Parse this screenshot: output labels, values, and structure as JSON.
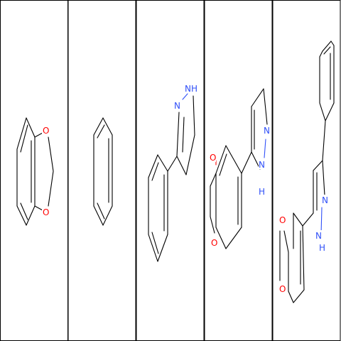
{
  "atom_colors": {
    "O": "#ff0000",
    "N": "#3050f8",
    "C": "#000000"
  },
  "molecules": [
    {
      "atoms": [
        {
          "label": "O"
        },
        {
          "label": "O"
        }
      ]
    },
    {
      "atoms": []
    },
    {
      "atoms": [
        {
          "label": "N"
        },
        {
          "label": "NH"
        }
      ]
    },
    {
      "atoms": [
        {
          "label": "O"
        },
        {
          "label": "N"
        },
        {
          "label": "N"
        },
        {
          "label": "H"
        }
      ]
    },
    {
      "atoms": [
        {
          "label": "O"
        },
        {
          "label": "O"
        },
        {
          "label": "N"
        },
        {
          "label": "N"
        },
        {
          "label": "H"
        }
      ]
    }
  ]
}
